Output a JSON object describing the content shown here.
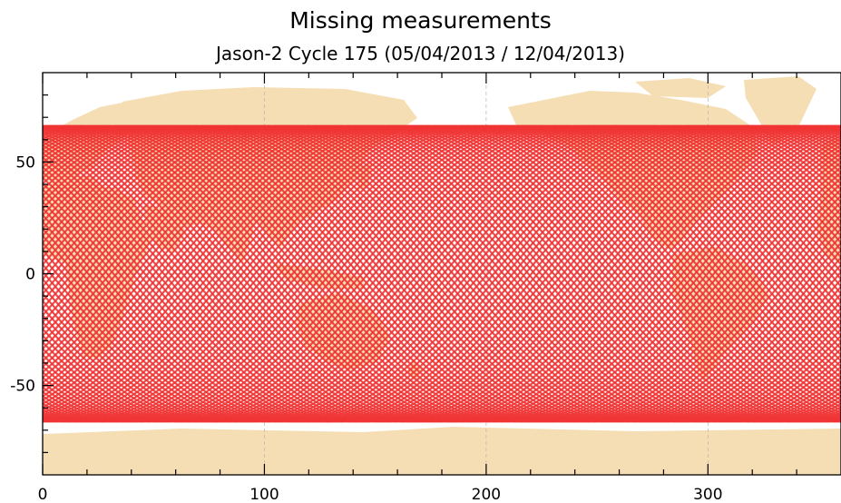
{
  "title": "Missing measurements",
  "subtitle": "Jason-2 Cycle 175 (05/04/2013 / 12/04/2013)",
  "chart_data": {
    "type": "map",
    "x_ticks": [
      0,
      100,
      200,
      300
    ],
    "y_ticks": [
      50,
      0,
      -50
    ],
    "xlim": [
      0,
      360
    ],
    "ylim": [
      -90,
      90
    ],
    "grid": true,
    "land_color": "#f5deb3",
    "track_color": "#ef3434",
    "track_inclination_deg": 66.15,
    "track_count": 127,
    "track_phase_deg": 5.0
  }
}
